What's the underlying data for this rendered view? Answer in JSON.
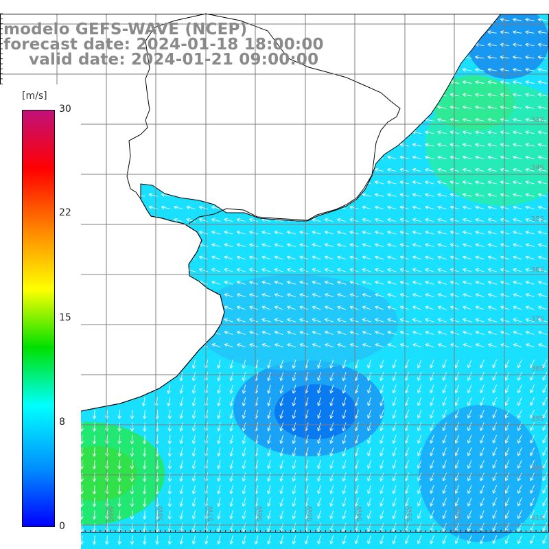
{
  "header": {
    "line1": "modelo GEFS-WAVE (NCEP)",
    "line2": "forecast date: 2024-01-18 18:00:00",
    "line3": "valid date: 2024-01-21 09:00:00"
  },
  "colorbar": {
    "unit": "[m/s]",
    "ticks": [
      "30",
      "22",
      "15",
      "8",
      "0"
    ],
    "gradient_stops": [
      "#c1117a",
      "#ff0000",
      "#ff8800",
      "#ffff00",
      "#00e000",
      "#00ffff",
      "#0090ff",
      "#0000ff"
    ]
  },
  "map": {
    "land_color": "#ffffff",
    "grid_color": "#7d7d7d",
    "field_colors": {
      "low": "#0a78f0",
      "mid": "#1ae0ff",
      "high": "#22e86a"
    },
    "lat_labels": [
      "33S",
      "34S",
      "35S",
      "36S",
      "37S",
      "38S",
      "39S",
      "40S",
      "41S"
    ],
    "lon_labels": [
      "61W",
      "60W",
      "59W",
      "58W",
      "57W",
      "56W",
      "55W",
      "54W",
      "53W",
      "52W"
    ]
  }
}
